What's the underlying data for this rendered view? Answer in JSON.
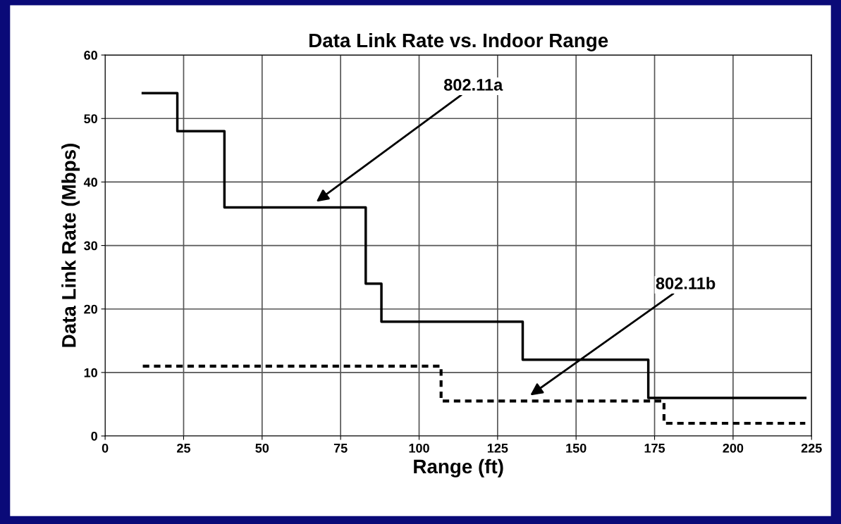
{
  "chart_data": {
    "type": "step",
    "title": "Data Link Rate vs. Indoor Range",
    "xlabel": "Range (ft)",
    "ylabel": "Data Link Rate (Mbps)",
    "series": [
      {
        "color": "#000000",
        "line_style": "solid",
        "x": [
          12,
          23,
          38,
          83,
          88,
          133,
          173,
          223
        ],
        "values": [
          54,
          48,
          36,
          24,
          18,
          12,
          6,
          6
        ]
      },
      {
        "color": "#000000",
        "line_style": "dashed",
        "x": [
          12,
          107,
          178,
          223
        ],
        "values": [
          11,
          5.5,
          2,
          2
        ]
      }
    ],
    "annotations": [
      "802.11a",
      "802.11b"
    ],
    "xlim": [
      0,
      225
    ],
    "xticks": [
      0,
      25,
      50,
      75,
      100,
      125,
      150,
      175,
      200,
      225
    ],
    "ylim": [
      0,
      60
    ],
    "yticks": [
      0,
      10,
      20,
      30,
      40,
      50,
      60
    ],
    "grid": true,
    "legend": false
  }
}
